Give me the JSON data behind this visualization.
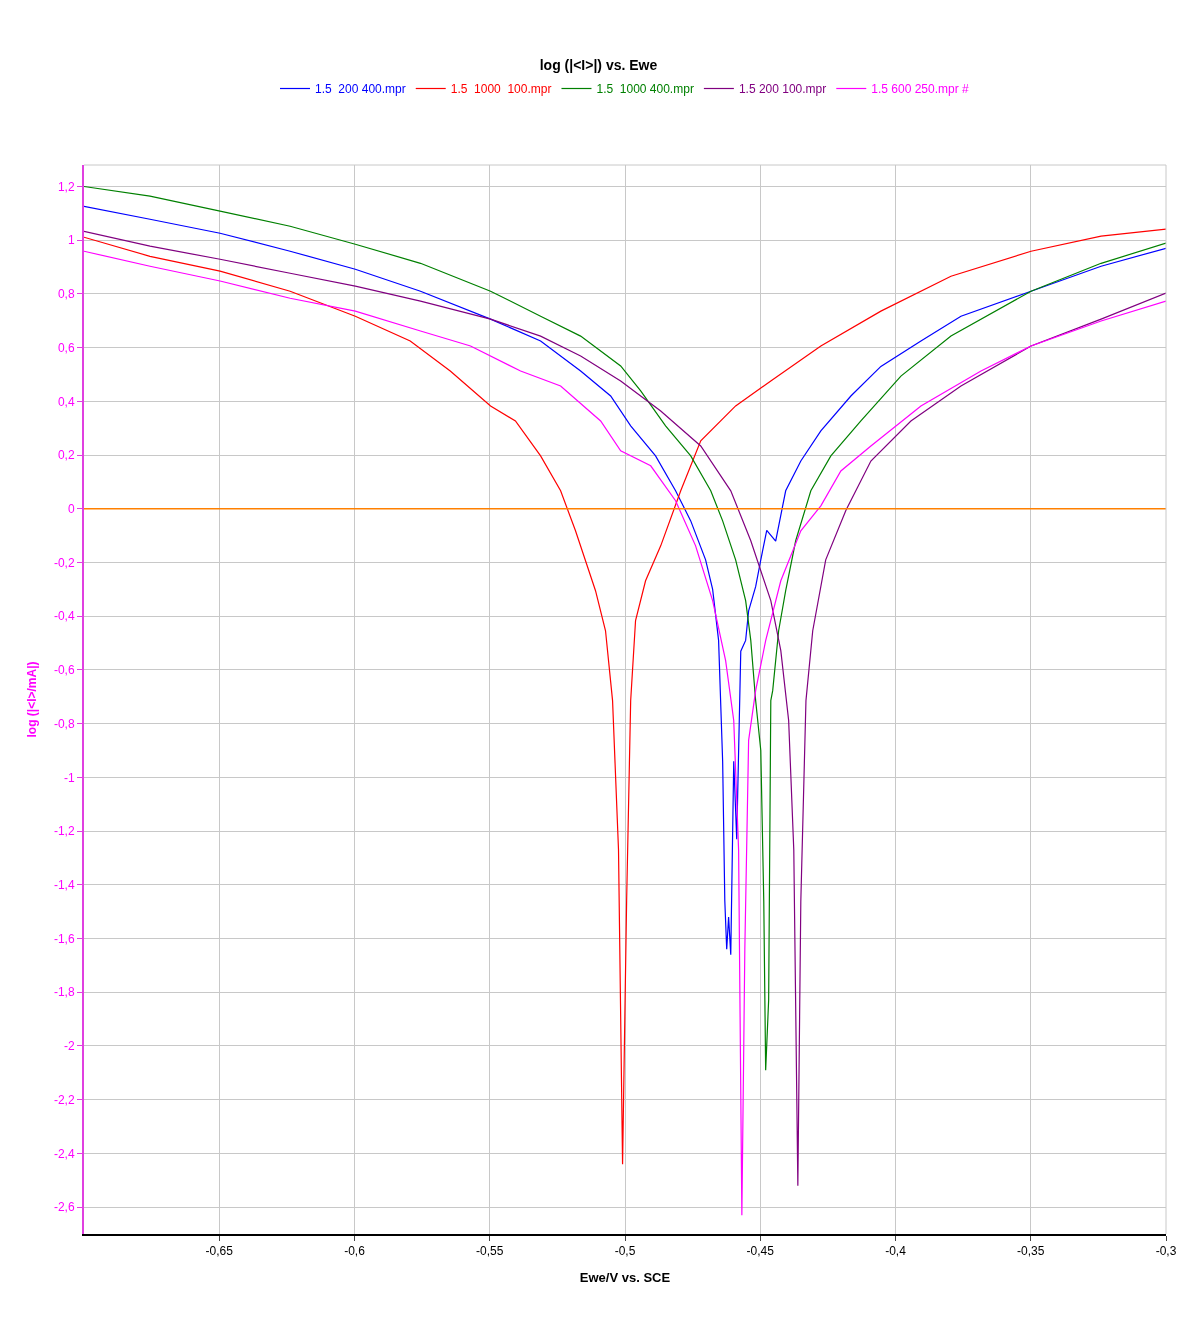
{
  "chart_data": {
    "type": "line",
    "title": "log (|<I>|) vs. Ewe",
    "xlabel": "Ewe/V vs. SCE",
    "ylabel": "log (|<I>/mA|)",
    "xlim": [
      -0.7,
      -0.3
    ],
    "ylim": [
      -2.7,
      1.28
    ],
    "xticks": [
      {
        "value": -0.65,
        "label": "-0,65"
      },
      {
        "value": -0.6,
        "label": "-0,6"
      },
      {
        "value": -0.55,
        "label": "-0,55"
      },
      {
        "value": -0.5,
        "label": "-0,5"
      },
      {
        "value": -0.45,
        "label": "-0,45"
      },
      {
        "value": -0.4,
        "label": "-0,4"
      },
      {
        "value": -0.35,
        "label": "-0,35"
      },
      {
        "value": -0.3,
        "label": "-0,3"
      }
    ],
    "yticks": [
      {
        "value": 1.2,
        "label": "1,2"
      },
      1,
      {
        "value": 0.8,
        "label": "0,8"
      },
      {
        "value": 0.6,
        "label": "0,6"
      },
      {
        "value": 0.4,
        "label": "0,4"
      },
      {
        "value": 0.2,
        "label": "0,2"
      },
      0,
      {
        "value": -0.2,
        "label": "-0,2"
      },
      {
        "value": -0.4,
        "label": "-0,4"
      },
      {
        "value": -0.6,
        "label": "-0,6"
      },
      {
        "value": -0.8,
        "label": "-0,8"
      },
      -1,
      {
        "value": -1.2,
        "label": "-1,2"
      },
      {
        "value": -1.4,
        "label": "-1,4"
      },
      {
        "value": -1.6,
        "label": "-1,6"
      },
      {
        "value": -1.8,
        "label": "-1,8"
      },
      -2,
      {
        "value": -2.2,
        "label": "-2,2"
      },
      {
        "value": -2.4,
        "label": "-2,4"
      },
      {
        "value": -2.6,
        "label": "-2,6"
      }
    ],
    "grid": true,
    "legend": "top",
    "marker": "none",
    "line_style": "solid",
    "ref_lines": [
      {
        "axis": "y",
        "value": 0,
        "color": "#ff8000"
      }
    ],
    "series": [
      {
        "name": "1.5  200 400.mpr",
        "color": "#0000ff",
        "x": [
          -0.7,
          -0.6756,
          -0.6497,
          -0.6238,
          -0.5997,
          -0.5756,
          -0.5497,
          -0.5312,
          -0.5164,
          -0.5053,
          -0.4979,
          -0.4887,
          -0.4813,
          -0.4757,
          -0.4702,
          -0.4676,
          -0.4654,
          -0.4639,
          -0.4631,
          -0.4624,
          -0.4617,
          -0.4609,
          -0.4598,
          -0.4587,
          -0.4572,
          -0.4554,
          -0.4543,
          -0.4517,
          -0.4498,
          -0.4476,
          -0.4443,
          -0.4406,
          -0.435,
          -0.4276,
          -0.4165,
          -0.4054,
          -0.3906,
          -0.3758,
          -0.3499,
          -0.324,
          -0.3
        ],
        "values": [
          1.126,
          1.078,
          1.026,
          0.959,
          0.892,
          0.81,
          0.706,
          0.625,
          0.513,
          0.42,
          0.309,
          0.197,
          0.067,
          -0.045,
          -0.19,
          -0.3,
          -0.49,
          -0.94,
          -1.46,
          -1.64,
          -1.52,
          -1.66,
          -0.94,
          -1.23,
          -0.53,
          -0.49,
          -0.38,
          -0.29,
          -0.19,
          -0.08,
          -0.12,
          0.067,
          0.178,
          0.29,
          0.42,
          0.53,
          0.625,
          0.717,
          0.81,
          0.903,
          0.97
        ]
      },
      {
        "name": "1.5  1000  100.mpr",
        "color": "#ff0000",
        "x": [
          -0.7,
          -0.6756,
          -0.6497,
          -0.6238,
          -0.5997,
          -0.5794,
          -0.5646,
          -0.5497,
          -0.5405,
          -0.5312,
          -0.5238,
          -0.5183,
          -0.5109,
          -0.5072,
          -0.5046,
          -0.5024,
          -0.5009,
          -0.4994,
          -0.4979,
          -0.4961,
          -0.4924,
          -0.4868,
          -0.4794,
          -0.472,
          -0.4591,
          -0.4461,
          -0.4276,
          -0.4054,
          -0.3795,
          -0.3499,
          -0.324,
          -0.3
        ],
        "values": [
          1.011,
          0.94,
          0.885,
          0.81,
          0.717,
          0.625,
          0.513,
          0.383,
          0.327,
          0.197,
          0.067,
          -0.082,
          -0.305,
          -0.454,
          -0.714,
          -1.27,
          -2.44,
          -1.46,
          -0.714,
          -0.416,
          -0.268,
          -0.138,
          0.067,
          0.253,
          0.383,
          0.476,
          0.606,
          0.736,
          0.866,
          0.959,
          1.015,
          1.041
        ]
      },
      {
        "name": "1.5  1000 400.mpr",
        "color": "#008000",
        "x": [
          -0.7,
          -0.6756,
          -0.6497,
          -0.6238,
          -0.5997,
          -0.5756,
          -0.5497,
          -0.5312,
          -0.5164,
          -0.5016,
          -0.4942,
          -0.485,
          -0.4757,
          -0.4683,
          -0.4639,
          -0.4591,
          -0.4554,
          -0.4535,
          -0.4517,
          -0.4498,
          -0.4487,
          -0.448,
          -0.4469,
          -0.4461,
          -0.4454,
          -0.4432,
          -0.4406,
          -0.4369,
          -0.4313,
          -0.4239,
          -0.4128,
          -0.398,
          -0.3795,
          -0.3499,
          -0.324,
          -0.3
        ],
        "values": [
          1.2,
          1.164,
          1.108,
          1.052,
          0.985,
          0.914,
          0.81,
          0.717,
          0.643,
          0.532,
          0.439,
          0.309,
          0.197,
          0.067,
          -0.045,
          -0.19,
          -0.342,
          -0.49,
          -0.714,
          -0.9,
          -1.46,
          -2.09,
          -1.83,
          -0.714,
          -0.677,
          -0.454,
          -0.305,
          -0.119,
          0.067,
          0.197,
          0.327,
          0.494,
          0.643,
          0.81,
          0.914,
          0.989
        ]
      },
      {
        "name": "1.5 200 100.mpr",
        "color": "#800080",
        "x": [
          -0.7,
          -0.6756,
          -0.6497,
          -0.6238,
          -0.5997,
          -0.5756,
          -0.5497,
          -0.5312,
          -0.5164,
          -0.5016,
          -0.4868,
          -0.472,
          -0.4609,
          -0.4535,
          -0.4461,
          -0.4424,
          -0.4395,
          -0.4376,
          -0.4361,
          -0.435,
          -0.4331,
          -0.4306,
          -0.4258,
          -0.4184,
          -0.4091,
          -0.3943,
          -0.3758,
          -0.3499,
          -0.324,
          -0.3
        ],
        "values": [
          1.033,
          0.978,
          0.929,
          0.877,
          0.829,
          0.773,
          0.706,
          0.643,
          0.569,
          0.476,
          0.364,
          0.234,
          0.067,
          -0.119,
          -0.342,
          -0.528,
          -0.788,
          -1.27,
          -2.52,
          -1.46,
          -0.714,
          -0.454,
          -0.19,
          -0.007,
          0.178,
          0.327,
          0.457,
          0.606,
          0.706,
          0.803
        ]
      },
      {
        "name": "1.5 600 250.mpr #",
        "color": "#ff00ff",
        "x": [
          -0.7,
          -0.6756,
          -0.6497,
          -0.6238,
          -0.5997,
          -0.5756,
          -0.5571,
          -0.5386,
          -0.5238,
          -0.509,
          -0.5016,
          -0.4905,
          -0.4813,
          -0.4739,
          -0.4676,
          -0.4628,
          -0.4598,
          -0.458,
          -0.4568,
          -0.4557,
          -0.4543,
          -0.4517,
          -0.448,
          -0.4424,
          -0.435,
          -0.4276,
          -0.4202,
          -0.4091,
          -0.3906,
          -0.3684,
          -0.3499,
          -0.324,
          -0.3
        ],
        "values": [
          0.959,
          0.903,
          0.848,
          0.784,
          0.736,
          0.662,
          0.606,
          0.513,
          0.457,
          0.327,
          0.216,
          0.16,
          0.03,
          -0.138,
          -0.342,
          -0.565,
          -0.788,
          -1.27,
          -2.63,
          -1.64,
          -0.862,
          -0.677,
          -0.491,
          -0.268,
          -0.082,
          0.011,
          0.141,
          0.234,
          0.383,
          0.513,
          0.606,
          0.699,
          0.773
        ]
      }
    ]
  }
}
